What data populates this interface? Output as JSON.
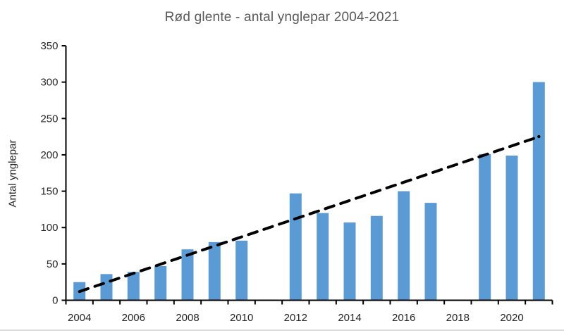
{
  "chart_data": {
    "type": "bar",
    "title": "Rød glente - antal ynglepar 2004-2021",
    "xlabel": "",
    "ylabel": "Antal ynglepar",
    "categories": [
      2004,
      2005,
      2006,
      2007,
      2008,
      2009,
      2010,
      2011,
      2012,
      2013,
      2014,
      2015,
      2016,
      2017,
      2018,
      2019,
      2020,
      2021
    ],
    "values": [
      25,
      36,
      39,
      47,
      70,
      80,
      82,
      null,
      147,
      120,
      107,
      116,
      150,
      134,
      null,
      201,
      199,
      300
    ],
    "missing_years": [
      2011,
      2018
    ],
    "x_tick_labels": [
      "2004",
      "2006",
      "2008",
      "2010",
      "2012",
      "2014",
      "2016",
      "2018",
      "2020"
    ],
    "y_ticks": [
      0,
      50,
      100,
      150,
      200,
      250,
      300,
      350
    ],
    "ylim": [
      0,
      350
    ],
    "grid": false,
    "legend": "none",
    "trendline": {
      "style": "dashed",
      "start": {
        "year": 2004,
        "value": 12
      },
      "end": {
        "year": 2021,
        "value": 225
      }
    },
    "colors": {
      "bar": "#5B9BD5",
      "trendline": "#000000",
      "axis": "#000000",
      "tick_label": "#262626",
      "title": "#595959",
      "axis_title": "#262626",
      "frame_border": "#dcdcdc"
    }
  }
}
